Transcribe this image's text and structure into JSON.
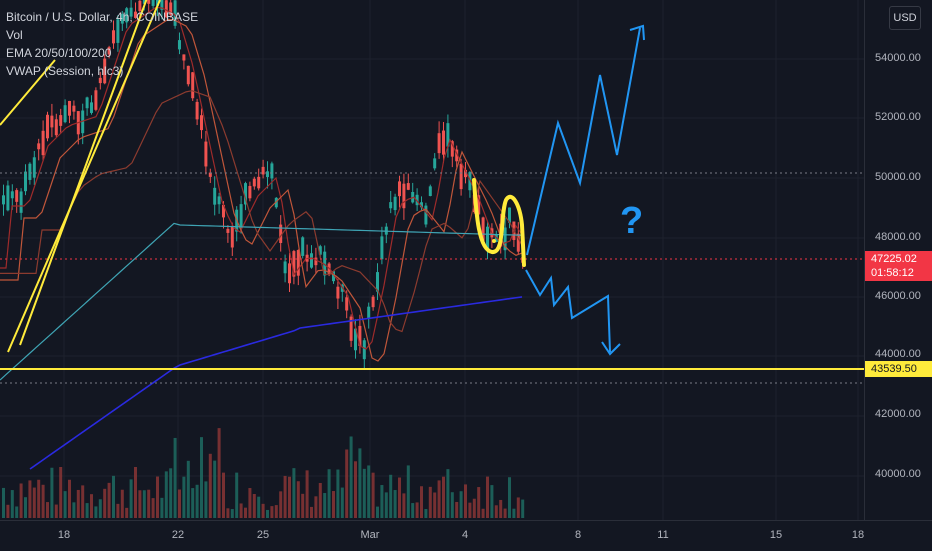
{
  "legend": {
    "symbol": "Bitcoin / U.S. Dollar, 4h, COINBASE",
    "vol": "Vol",
    "ema": "EMA 20/50/100/200",
    "vwap": "VWAP (Session, hlc3)"
  },
  "currency": "USD",
  "price_ticks": [
    "54000.00",
    "52000.00",
    "50000.00",
    "48000.00",
    "46000.00",
    "44000.00",
    "42000.00",
    "40000.00"
  ],
  "time_ticks": [
    "18",
    "22",
    "25",
    "Mar",
    "4",
    "8",
    "11",
    "15",
    "18"
  ],
  "last_price": {
    "price": "47225.02",
    "countdown": "01:58:12"
  },
  "support_level": "43539.50",
  "annotation": {
    "question_mark": "?"
  },
  "colors": {
    "up": "#26a69a",
    "down": "#ef5350",
    "support": "#ffeb3b",
    "vwap": "#2962ff",
    "projection": "#2196f3",
    "highlight": "#ffeb3b",
    "ema20": "#f5c542",
    "ema50": "#e57373",
    "ema100": "#ff7043",
    "ema200": "#4dd0e1"
  }
}
